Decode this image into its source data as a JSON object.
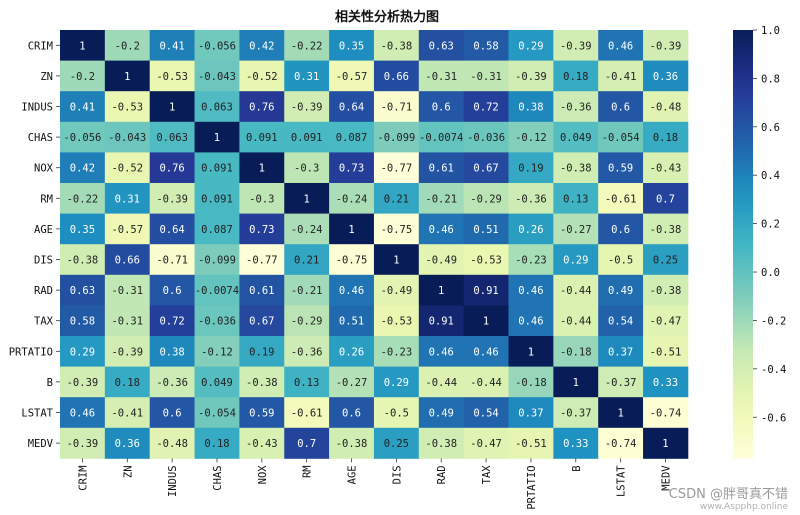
{
  "chart_data": {
    "type": "heatmap",
    "title": "相关性分析热力图",
    "xlabel": "",
    "ylabel": "",
    "labels": [
      "CRIM",
      "ZN",
      "INDUS",
      "CHAS",
      "NOX",
      "RM",
      "AGE",
      "DIS",
      "RAD",
      "TAX",
      "PRTATIO",
      "B",
      "LSTAT",
      "MEDV"
    ],
    "values": [
      [
        "1",
        "-0.2",
        "0.41",
        "-0.056",
        "0.42",
        "-0.22",
        "0.35",
        "-0.38",
        "0.63",
        "0.58",
        "0.29",
        "-0.39",
        "0.46",
        "-0.39"
      ],
      [
        "-0.2",
        "1",
        "-0.53",
        "-0.043",
        "-0.52",
        "0.31",
        "-0.57",
        "0.66",
        "-0.31",
        "-0.31",
        "-0.39",
        "0.18",
        "-0.41",
        "0.36"
      ],
      [
        "0.41",
        "-0.53",
        "1",
        "0.063",
        "0.76",
        "-0.39",
        "0.64",
        "-0.71",
        "0.6",
        "0.72",
        "0.38",
        "-0.36",
        "0.6",
        "-0.48"
      ],
      [
        "-0.056",
        "-0.043",
        "0.063",
        "1",
        "0.091",
        "0.091",
        "0.087",
        "-0.099",
        "-0.0074",
        "-0.036",
        "-0.12",
        "0.049",
        "-0.054",
        "0.18"
      ],
      [
        "0.42",
        "-0.52",
        "0.76",
        "0.091",
        "1",
        "-0.3",
        "0.73",
        "-0.77",
        "0.61",
        "0.67",
        "0.19",
        "-0.38",
        "0.59",
        "-0.43"
      ],
      [
        "-0.22",
        "0.31",
        "-0.39",
        "0.091",
        "-0.3",
        "1",
        "-0.24",
        "0.21",
        "-0.21",
        "-0.29",
        "-0.36",
        "0.13",
        "-0.61",
        "0.7"
      ],
      [
        "0.35",
        "-0.57",
        "0.64",
        "0.087",
        "0.73",
        "-0.24",
        "1",
        "-0.75",
        "0.46",
        "0.51",
        "0.26",
        "-0.27",
        "0.6",
        "-0.38"
      ],
      [
        "-0.38",
        "0.66",
        "-0.71",
        "-0.099",
        "-0.77",
        "0.21",
        "-0.75",
        "1",
        "-0.49",
        "-0.53",
        "-0.23",
        "0.29",
        "-0.5",
        "0.25"
      ],
      [
        "0.63",
        "-0.31",
        "0.6",
        "-0.0074",
        "0.61",
        "-0.21",
        "0.46",
        "-0.49",
        "1",
        "0.91",
        "0.46",
        "-0.44",
        "0.49",
        "-0.38"
      ],
      [
        "0.58",
        "-0.31",
        "0.72",
        "-0.036",
        "0.67",
        "-0.29",
        "0.51",
        "-0.53",
        "0.91",
        "1",
        "0.46",
        "-0.44",
        "0.54",
        "-0.47"
      ],
      [
        "0.29",
        "-0.39",
        "0.38",
        "-0.12",
        "0.19",
        "-0.36",
        "0.26",
        "-0.23",
        "0.46",
        "0.46",
        "1",
        "-0.18",
        "0.37",
        "-0.51"
      ],
      [
        "-0.39",
        "0.18",
        "-0.36",
        "0.049",
        "-0.38",
        "0.13",
        "-0.27",
        "0.29",
        "-0.44",
        "-0.44",
        "-0.18",
        "1",
        "-0.37",
        "0.33"
      ],
      [
        "0.46",
        "-0.41",
        "0.6",
        "-0.054",
        "0.59",
        "-0.61",
        "0.6",
        "-0.5",
        "0.49",
        "0.54",
        "0.37",
        "-0.37",
        "1",
        "-0.74"
      ],
      [
        "-0.39",
        "0.36",
        "-0.48",
        "0.18",
        "-0.43",
        "0.7",
        "-0.38",
        "0.25",
        "-0.38",
        "-0.47",
        "-0.51",
        "0.33",
        "-0.74",
        "1"
      ]
    ],
    "colormap": "YlGnBu",
    "vmin": -0.77,
    "vmax": 1.0,
    "colorbar_ticks": [
      "1.0",
      "0.8",
      "0.6",
      "0.4",
      "0.2",
      "0.0",
      "-0.2",
      "-0.4",
      "-0.6"
    ],
    "colorbar_tick_values": [
      1.0,
      0.8,
      0.6,
      0.4,
      0.2,
      0.0,
      -0.2,
      -0.4,
      -0.6
    ],
    "annotations_shown": true
  },
  "watermark": {
    "text": "CSDN @胖哥真不错",
    "subtext": "www.Aspphp.online"
  }
}
